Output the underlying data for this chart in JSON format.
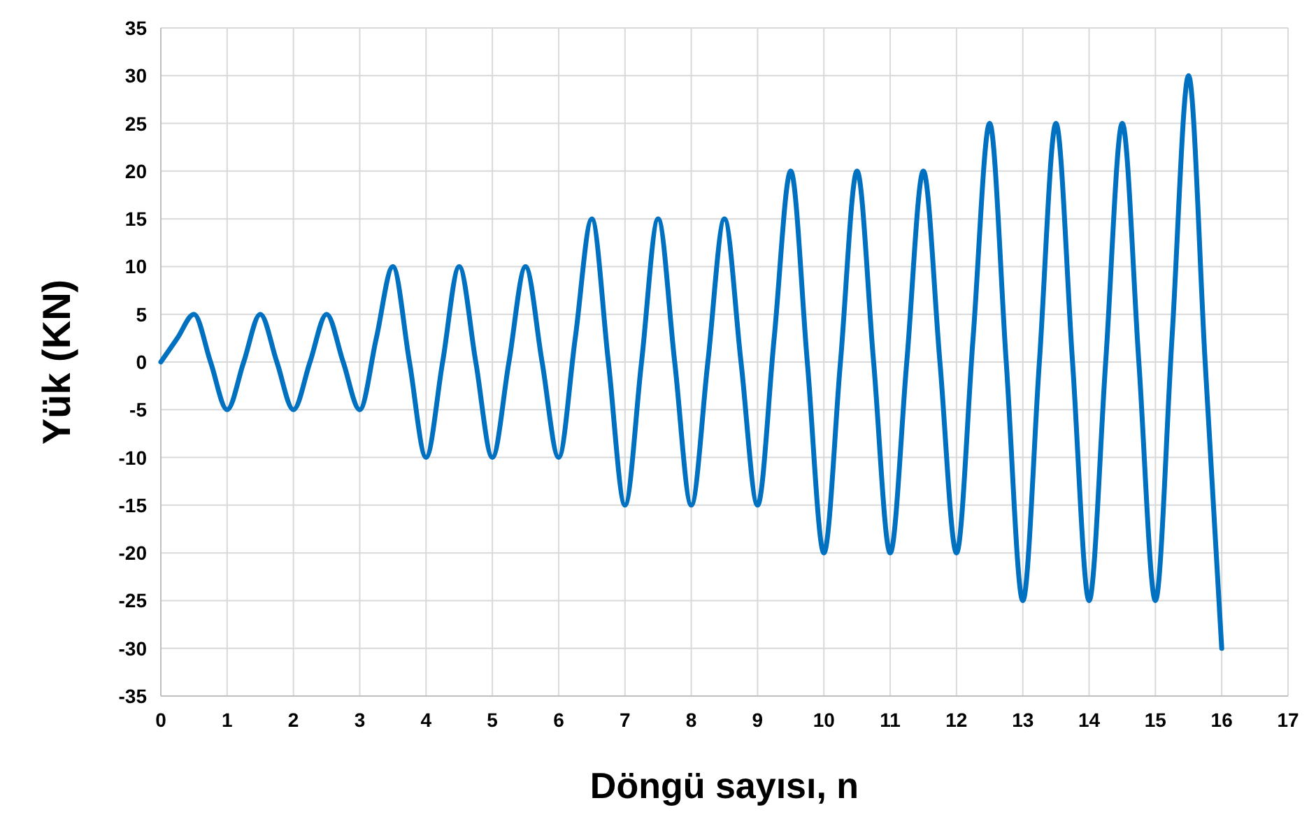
{
  "chart_data": {
    "type": "line",
    "xlabel": "Döngü sayısı, n",
    "ylabel": "Yük (KN)",
    "x": [
      0,
      0.25,
      0.5,
      0.75,
      1,
      1.25,
      1.5,
      1.75,
      2,
      2.25,
      2.5,
      2.75,
      3,
      3.25,
      3.5,
      3.75,
      4,
      4.25,
      4.5,
      4.75,
      5,
      5.25,
      5.5,
      5.75,
      6,
      6.25,
      6.5,
      6.75,
      7,
      7.25,
      7.5,
      7.75,
      8,
      8.25,
      8.5,
      8.75,
      9,
      9.25,
      9.5,
      9.75,
      10,
      10.25,
      10.5,
      10.75,
      11,
      11.25,
      11.5,
      11.75,
      12,
      12.25,
      12.5,
      12.75,
      13,
      13.25,
      13.5,
      13.75,
      14,
      14.25,
      14.5,
      14.75,
      15,
      15.25,
      15.5,
      15.75,
      16
    ],
    "series": [
      {
        "color": "#0070c0",
        "values": [
          0,
          2.5,
          5,
          0,
          -5,
          0,
          5,
          0,
          -5,
          0,
          5,
          0,
          -5,
          2.5,
          10,
          0,
          -10,
          0,
          10,
          0,
          -10,
          0,
          10,
          0,
          -10,
          2.5,
          15,
          0,
          -15,
          0,
          15,
          0,
          -15,
          0,
          15,
          0,
          -15,
          2.5,
          20,
          0,
          -20,
          0,
          20,
          0,
          -20,
          0,
          20,
          0,
          -20,
          2.5,
          25,
          0,
          -25,
          0,
          25,
          0,
          -25,
          0,
          25,
          0,
          -25,
          2.5,
          30,
          0,
          -30
        ]
      }
    ],
    "xlim": [
      0,
      17
    ],
    "xticks": [
      0,
      1,
      2,
      3,
      4,
      5,
      6,
      7,
      8,
      9,
      10,
      11,
      12,
      13,
      14,
      15,
      16,
      17
    ],
    "ylim": [
      -35,
      35
    ],
    "yticks": [
      -35,
      -30,
      -25,
      -20,
      -15,
      -10,
      -5,
      0,
      5,
      10,
      15,
      20,
      25,
      30,
      35
    ],
    "grid": true,
    "marker": "none",
    "line_style": "solid"
  }
}
